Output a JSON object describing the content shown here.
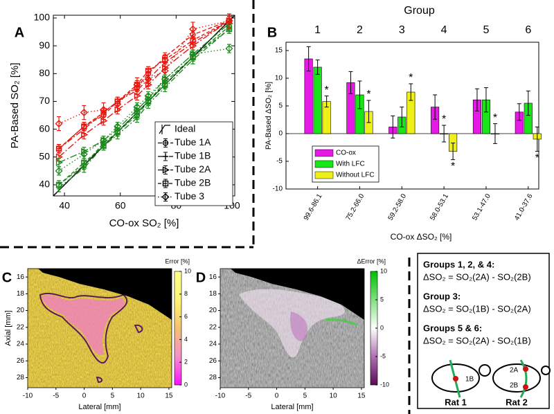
{
  "chart_data": [
    {
      "type": "line",
      "panel": "A",
      "xlabel": "CO-ox SO₂ [%]",
      "ylabel": "PA-Based SO₂ [%]",
      "xlim": [
        36,
        101
      ],
      "xticks": [
        40,
        60,
        80,
        100
      ],
      "ylim": [
        36,
        101
      ],
      "yticks": [
        40,
        50,
        60,
        70,
        80,
        90,
        100
      ],
      "x": [
        38,
        47,
        54,
        59,
        66,
        70,
        76,
        86,
        99
      ],
      "ideal": {
        "name": "Ideal",
        "x": [
          36,
          101
        ],
        "values": [
          36,
          101
        ],
        "color": "#000000"
      },
      "series": [
        {
          "name": "Tube 1A",
          "marker": "circle",
          "dash": "6 3",
          "lines": [
            {
              "color": "#e8170f",
              "error": 1.5,
              "values": [
                53,
                61,
                65,
                70,
                75,
                80,
                86,
                94,
                99
              ]
            },
            {
              "color": "#1f8a1f",
              "error": 1.5,
              "values": [
                40,
                47,
                55,
                59,
                65,
                70,
                77,
                86,
                97
              ]
            }
          ]
        },
        {
          "name": "Tube 1B",
          "marker": "cross",
          "dash": "8 3 2 3",
          "lines": [
            {
              "color": "#e8170f",
              "error": 1.5,
              "values": [
                53,
                60,
                66,
                70,
                74,
                78,
                84,
                91,
                99
              ]
            },
            {
              "color": "#1f8a1f",
              "error": 1.5,
              "values": [
                39,
                46,
                54,
                58,
                64,
                69,
                75,
                85,
                96
              ]
            }
          ]
        },
        {
          "name": "Tube 2A",
          "marker": "triangle",
          "dash": "10 3 2 3",
          "lines": [
            {
              "color": "#e8170f",
              "error": 1.5,
              "values": [
                50,
                58,
                63,
                67,
                72,
                76,
                82,
                90,
                99
              ]
            },
            {
              "color": "#1f8a1f",
              "error": 1.5,
              "values": [
                48,
                52,
                56,
                60,
                67,
                71,
                78,
                87,
                98
              ]
            }
          ]
        },
        {
          "name": "Tube 2B",
          "marker": "square",
          "dash": "5 3",
          "lines": [
            {
              "color": "#e8170f",
              "error": 1.5,
              "values": [
                53,
                61,
                66,
                70,
                76,
                81,
                85,
                92,
                99
              ]
            },
            {
              "color": "#1f8a1f",
              "error": 1.5,
              "values": [
                40,
                48,
                54,
                59,
                66,
                70,
                76,
                86,
                96
              ]
            }
          ]
        },
        {
          "name": "Tube 3",
          "marker": "diamond",
          "dash": "1.5 3",
          "lines": [
            {
              "color": "#e8170f",
              "error": 2.5,
              "values": [
                62,
                66,
                67,
                69,
                76,
                78,
                81,
                96,
                99
              ]
            },
            {
              "color": "#1f8a1f",
              "error": 1.5,
              "values": [
                45,
                51,
                56,
                61,
                68,
                72,
                78,
                87,
                89
              ]
            }
          ]
        }
      ]
    },
    {
      "type": "bar",
      "panel": "B",
      "title": "Group",
      "groups": [
        "1",
        "2",
        "3",
        "4",
        "5",
        "6"
      ],
      "categories": [
        "99.6-86.1",
        "75.2-66.0",
        "59.2-58.0",
        "58.0-53.1",
        "53.1-47.0",
        "41.0-37.6"
      ],
      "xlabel": "CO-ox ΔSO₂ [%]",
      "ylabel": "PA-Based  ΔSO₂ [%]",
      "ylim": [
        -10,
        16.5
      ],
      "yticks": [
        -10,
        -5,
        0,
        5,
        10,
        15
      ],
      "significance_color": "#e8170f",
      "series": [
        {
          "name": "CO-ox",
          "color": "#e619e6",
          "values": [
            13.5,
            9.2,
            1.2,
            4.8,
            6.1,
            3.9
          ],
          "errors": [
            2.2,
            2,
            2,
            2.2,
            2,
            1.5
          ],
          "significance": [
            null,
            null,
            null,
            null,
            null,
            null
          ]
        },
        {
          "name": "With LFC",
          "color": "#19e619",
          "values": [
            12,
            7,
            3,
            0,
            6.1,
            5.5
          ],
          "errors": [
            1.3,
            2.5,
            1.8,
            1.5,
            2.2,
            2.2
          ],
          "significance": [
            null,
            null,
            null,
            "*",
            null,
            null
          ]
        },
        {
          "name": "Without LFC",
          "color": "#f0f019",
          "values": [
            5.8,
            4,
            7.5,
            -3.2,
            0,
            -1
          ],
          "errors": [
            1,
            2,
            1.5,
            1.5,
            1.8,
            2.2
          ],
          "significance": [
            "*",
            "*",
            "*",
            "*",
            "*",
            "*"
          ]
        }
      ]
    },
    {
      "type": "heatmap",
      "panel": "C",
      "xlabel": "Lateral [mm]",
      "ylabel": "Axial [mm]",
      "xlim": [
        -10,
        15.5
      ],
      "xticks": [
        -10,
        -5,
        0,
        5,
        10,
        15
      ],
      "ylim": [
        15,
        29.2
      ],
      "yticks": [
        16,
        18,
        20,
        22,
        24,
        26,
        28
      ],
      "colorbar": {
        "label": "Error [%]",
        "clim": [
          0,
          10
        ],
        "ticks": [
          0,
          2,
          4,
          6,
          8,
          10
        ],
        "colors": [
          "#ff10ff",
          "#f58fc9",
          "#f5c070",
          "#fff570",
          "#ffff90"
        ]
      }
    },
    {
      "type": "heatmap",
      "panel": "D",
      "xlabel": "Lateral [mm]",
      "xlim": [
        -10,
        15.5
      ],
      "xticks": [
        -10,
        -5,
        0,
        5,
        10,
        15
      ],
      "ylim": [
        15,
        29.2
      ],
      "yticks": [
        16,
        18,
        20,
        22,
        24,
        26,
        28
      ],
      "colorbar": {
        "label": "ΔError [%]",
        "clim": [
          -10,
          10
        ],
        "ticks": [
          -10,
          -5,
          0,
          5,
          10
        ],
        "colors": [
          "#5a0a5a",
          "#b070b0",
          "#ffffff",
          "#80e080",
          "#00c000"
        ]
      }
    }
  ],
  "definitions": {
    "items": [
      {
        "heading": "Groups 1, 2, & 4:",
        "equation": "ΔSO₂ = SO₂(2A) - SO₂(2B)"
      },
      {
        "heading": "Group 3:",
        "equation": "ΔSO₂ = SO₂(1B) - SO₂(2A)"
      },
      {
        "heading": "Groups 5 & 6:",
        "equation": "ΔSO₂ = SO₂(2A) - SO₂(1B)"
      }
    ],
    "rats": [
      {
        "label": "Rat 1",
        "tubes": [
          "1B"
        ]
      },
      {
        "label": "Rat 2",
        "tubes": [
          "2A",
          "2B"
        ]
      }
    ]
  }
}
